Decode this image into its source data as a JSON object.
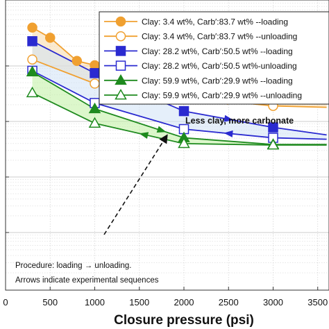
{
  "chart_data": {
    "type": "line",
    "xlabel": "Closure pressure (psi)",
    "x_ticks": [
      0,
      500,
      1000,
      1500,
      2000,
      2500,
      3000,
      3500
    ],
    "xlim": [
      0,
      3600
    ],
    "ylim": [
      0,
      1
    ],
    "grid": true,
    "legend_placement": "top-right",
    "series": [
      {
        "name": "Clay: 3.4 wt%, Carb′:83.7 wt% --loading",
        "color": "#f0a030",
        "marker": "circle",
        "filled": true,
        "x": [
          300,
          500,
          800,
          1000,
          1500,
          2000,
          3000,
          3600
        ],
        "y": [
          0.905,
          0.87,
          0.79,
          0.775,
          0.737,
          0.713,
          0.68,
          0.67
        ]
      },
      {
        "name": "Clay: 3.4 wt%, Carb′:83.7 wt% --unloading",
        "color": "#f0a030",
        "marker": "circle",
        "filled": false,
        "x": [
          300,
          1000,
          2000,
          3000,
          3600
        ],
        "y": [
          0.795,
          0.712,
          0.665,
          0.635,
          0.63
        ]
      },
      {
        "name": "Clay: 28.2 wt%, Carb′:50.5 wt% --loading",
        "color": "#2a2ad0",
        "marker": "square",
        "filled": true,
        "x": [
          300,
          1000,
          2000,
          3000,
          3600
        ],
        "y": [
          0.858,
          0.748,
          0.617,
          0.561,
          0.535
        ]
      },
      {
        "name": "Clay: 28.2 wt%, Carb′:50.5 wt%-unloading",
        "color": "#2a2ad0",
        "marker": "square",
        "filled": false,
        "x": [
          300,
          1000,
          2000,
          3000,
          3600
        ],
        "y": [
          0.756,
          0.645,
          0.555,
          0.525,
          0.52
        ]
      },
      {
        "name": "Clay: 59.9 wt%, Carb′:29.9 wt% --loading",
        "color": "#1e8a1e",
        "marker": "triangle",
        "filled": true,
        "x": [
          300,
          1000,
          2000,
          3000,
          3600
        ],
        "y": [
          0.752,
          0.625,
          0.525,
          0.502,
          0.502
        ]
      },
      {
        "name": "Clay: 59.9 wt%, Carb′:29.9 wt% --unloading",
        "color": "#1e8a1e",
        "marker": "triangle",
        "filled": false,
        "x": [
          300,
          1000,
          2000,
          3000,
          3600
        ],
        "y": [
          0.68,
          0.575,
          0.505,
          0.5,
          0.5
        ]
      }
    ],
    "annotations": {
      "trend": "Less clay, more carbonate",
      "note_line1": "Procedure: loading → unloading.",
      "note_line2": "Arrows indicate experimental sequences"
    }
  }
}
